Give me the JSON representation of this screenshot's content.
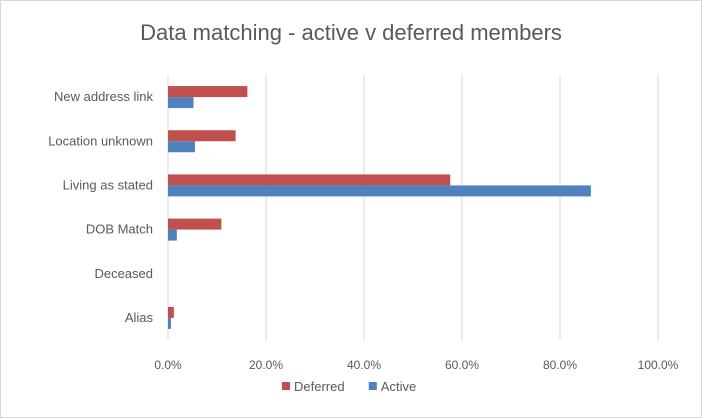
{
  "chart_data": {
    "type": "bar",
    "orientation": "horizontal",
    "title": "Data matching - active v deferred members",
    "xlabel": "",
    "ylabel": "",
    "categories": [
      "New address link",
      "Location unknown",
      "Living as stated",
      "DOB Match",
      "Deceased",
      "Alias"
    ],
    "series": [
      {
        "name": "Deferred",
        "color": "#c0504d",
        "values": [
          16.2,
          13.8,
          57.6,
          10.9,
          0.0,
          1.2
        ]
      },
      {
        "name": "Active",
        "color": "#4f81bd",
        "values": [
          5.2,
          5.5,
          86.3,
          1.8,
          0.0,
          0.6
        ]
      }
    ],
    "xlim": [
      0,
      100
    ],
    "xticks": [
      "0.0%",
      "20.0%",
      "40.0%",
      "60.0%",
      "80.0%",
      "100.0%"
    ],
    "grid": true,
    "legend_position": "bottom"
  }
}
